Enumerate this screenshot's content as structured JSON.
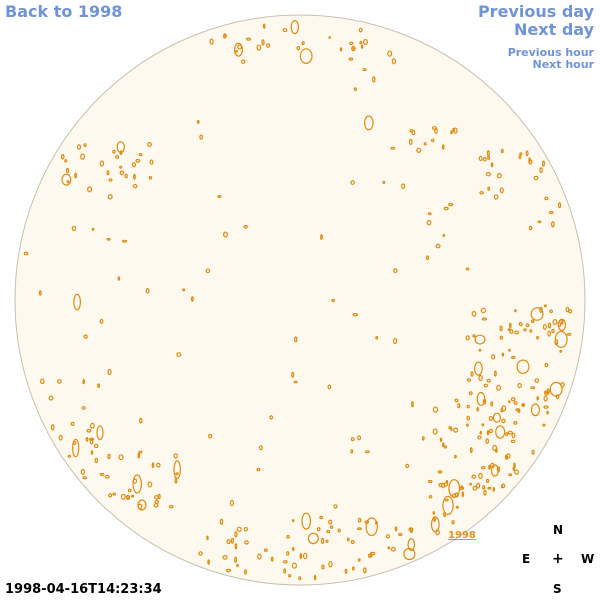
{
  "nav": {
    "back": "Back to 1998",
    "previous_day": "Previous day",
    "next_day": "Next day",
    "previous_hour": "Previous hour",
    "next_hour": "Next hour"
  },
  "timestamp": "1998-04-16T14:23:34",
  "compass": {
    "north": "N",
    "south": "S",
    "east": "E",
    "west": "W",
    "center": "+"
  },
  "region_label": "1998",
  "colors": {
    "disk_fill": "#fef9ee",
    "disk_edge": "#c8c0b0",
    "contour": "#e08a10",
    "nav_text": "#6f94d8"
  }
}
